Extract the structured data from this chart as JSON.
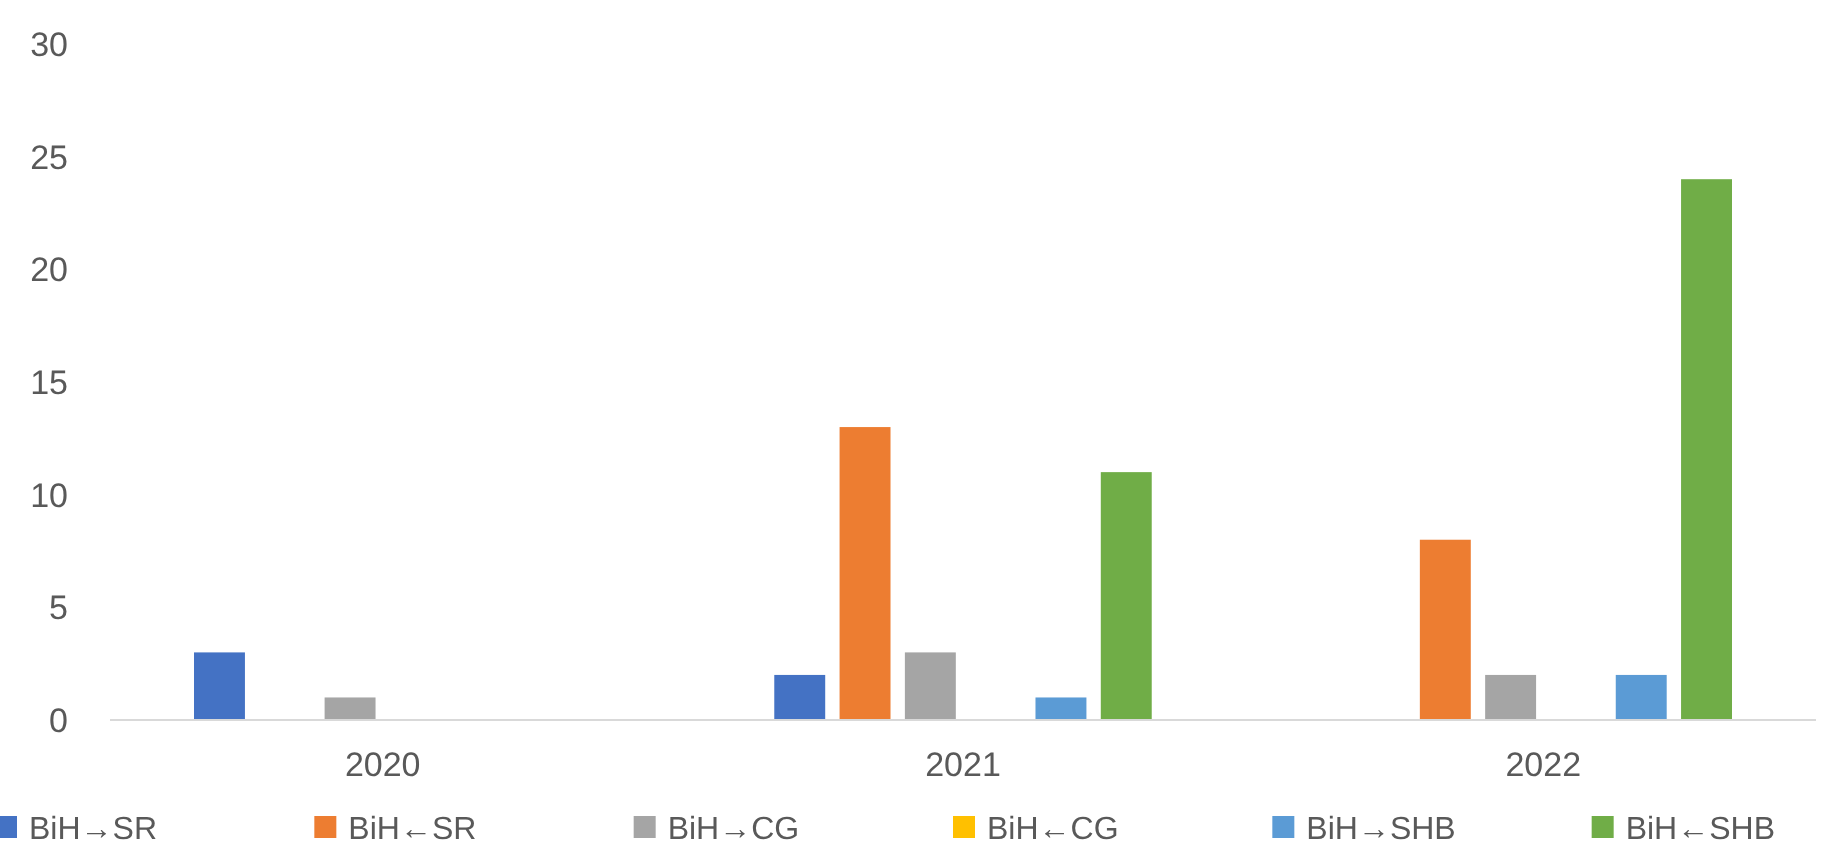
{
  "chart_data": {
    "type": "bar",
    "categories": [
      "2020",
      "2021",
      "2022"
    ],
    "series": [
      {
        "name": "BiH→SR",
        "color": "#4472c4",
        "values": [
          3,
          2,
          0
        ]
      },
      {
        "name": "BiH←SR",
        "color": "#ed7d31",
        "values": [
          0,
          13,
          8
        ]
      },
      {
        "name": "BiH→CG",
        "color": "#a5a5a5",
        "values": [
          1,
          3,
          2
        ]
      },
      {
        "name": "BiH←CG",
        "color": "#ffc000",
        "values": [
          0,
          0,
          0
        ]
      },
      {
        "name": "BiH→SHB",
        "color": "#5b9bd5",
        "values": [
          0,
          1,
          2
        ]
      },
      {
        "name": "BiH←SHB",
        "color": "#70ad47",
        "values": [
          0,
          11,
          24
        ]
      }
    ],
    "ylim": [
      0,
      30
    ],
    "yticks": [
      0,
      5,
      10,
      15,
      20,
      25,
      30
    ],
    "grid": false,
    "legend": "bottom"
  }
}
